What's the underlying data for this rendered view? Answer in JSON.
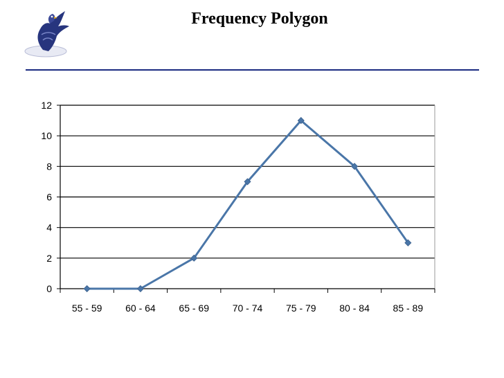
{
  "slide": {
    "title": "Frequency Polygon",
    "logo_icon": "eagle-logo-icon",
    "rule_color": "#1a2a80"
  },
  "chart_data": {
    "type": "line",
    "title": "Frequency Polygon",
    "xlabel": "",
    "ylabel": "",
    "categories": [
      "55 - 59",
      "60 - 64",
      "65 - 69",
      "70 - 74",
      "75 - 79",
      "80 - 84",
      "85 - 89"
    ],
    "series": [
      {
        "values": [
          0,
          0,
          2,
          7,
          11,
          8,
          3
        ],
        "color": "#4a76a8",
        "marker": "diamond"
      }
    ],
    "ylim": [
      0,
      12
    ],
    "yticks": [
      "0",
      "2",
      "4",
      "6",
      "8",
      "10",
      "12"
    ],
    "grid": true,
    "legend": "none"
  }
}
